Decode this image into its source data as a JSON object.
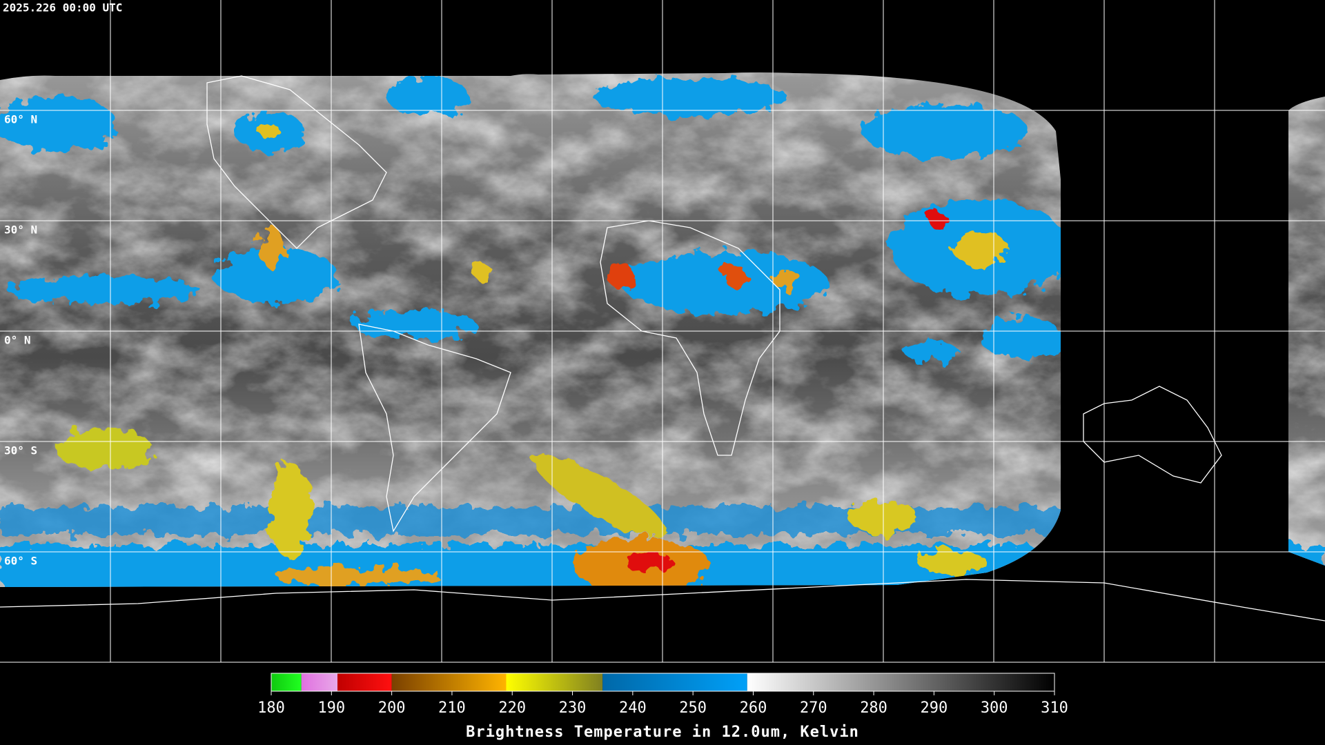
{
  "header": {
    "timestamp": "2025.226 00:00 UTC"
  },
  "map": {
    "lat_labels": [
      "60° N",
      "30° N",
      "0° N",
      "30° S",
      "60° S"
    ]
  },
  "colorbar": {
    "range": [
      180,
      310
    ],
    "ticks": [
      180,
      190,
      200,
      210,
      220,
      230,
      240,
      250,
      260,
      270,
      280,
      290,
      300,
      310
    ],
    "segments": [
      {
        "from": 180,
        "to": 185,
        "colors": [
          "#10c810",
          "#20ff20"
        ]
      },
      {
        "from": 185,
        "to": 191,
        "colors": [
          "#e070e0",
          "#e8a8e8"
        ]
      },
      {
        "from": 191,
        "to": 200,
        "colors": [
          "#c00000",
          "#ff1010"
        ]
      },
      {
        "from": 200,
        "to": 219,
        "colors": [
          "#7a4000",
          "#ffb400"
        ]
      },
      {
        "from": 219,
        "to": 235,
        "colors": [
          "#ffff00",
          "#808020"
        ]
      },
      {
        "from": 235,
        "to": 259,
        "colors": [
          "#0068a8",
          "#00a0f8"
        ]
      },
      {
        "from": 259,
        "to": 310,
        "colors": [
          "#ffffff",
          "#000000"
        ]
      }
    ],
    "title": "Brightness Temperature in 12.0um, Kelvin"
  }
}
